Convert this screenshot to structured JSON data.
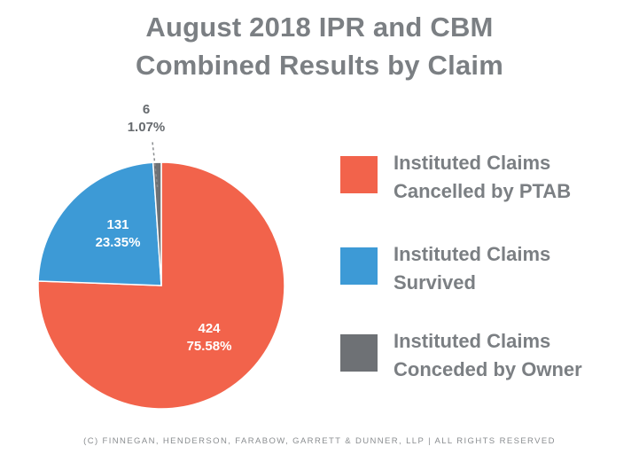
{
  "title": {
    "line1": "August 2018 IPR and CBM",
    "line2": "Combined Results by Claim"
  },
  "chart_data": {
    "type": "pie",
    "title": "August 2018 IPR and CBM Combined Results by Claim",
    "slices": [
      {
        "name": "Institued Claims Cancelled by PTAB",
        "legend_lines": [
          "Instituted Claims",
          "Cancelled by PTAB"
        ],
        "value": 424,
        "percent": "75.58%",
        "color": "#f2634b"
      },
      {
        "name": "Institued Claims Survived",
        "legend_lines": [
          "Instituted Claims",
          "Survived"
        ],
        "value": 131,
        "percent": "23.35%",
        "color": "#3d9ad6"
      },
      {
        "name": "Institued Claims Conceded by Owner",
        "legend_lines": [
          "Instituted Claims",
          "Conceded by Owner"
        ],
        "value": 6,
        "percent": "1.07%",
        "color": "#6e7175"
      }
    ],
    "legend_position": "right"
  },
  "footer": "(c) Finnegan, Henderson, Farabow, Garrett & Dunner, LLP | All rights reserved"
}
